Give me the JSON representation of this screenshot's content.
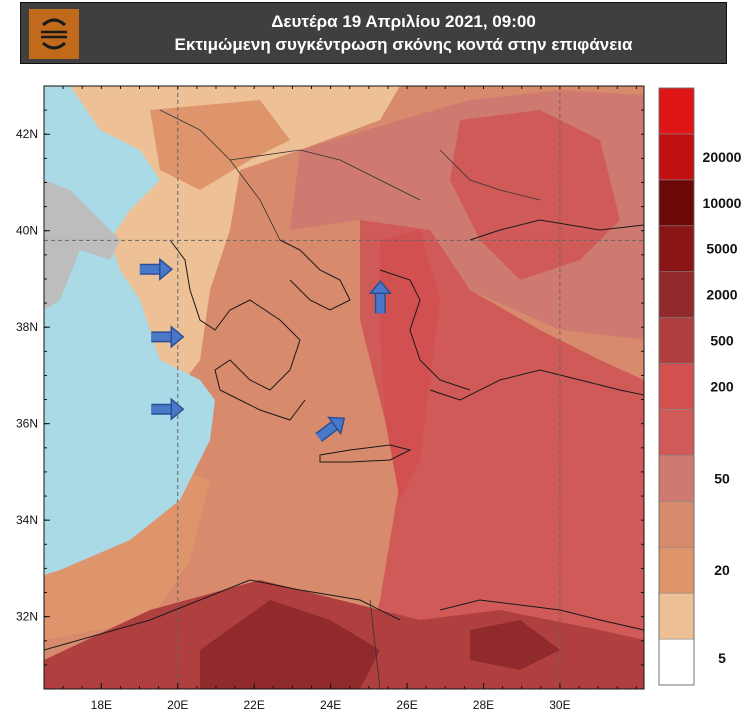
{
  "header": {
    "title_line1": "Δευτέρα 19 Απριλίου 2021, 09:00",
    "title_line2": "Εκτιμώμενη συγκέντρωση σκόνης κοντά στην επιφάνεια"
  },
  "logo": {
    "icon": "weather-logo-icon",
    "color": "#c26a1c"
  },
  "map": {
    "lon_range": [
      16.5,
      32.2
    ],
    "lat_range": [
      30.5,
      43.0
    ],
    "lon_ticks": [
      {
        "value": 18,
        "label": "18E"
      },
      {
        "value": 20,
        "label": "20E"
      },
      {
        "value": 22,
        "label": "22E"
      },
      {
        "value": 24,
        "label": "24E"
      },
      {
        "value": 26,
        "label": "26E"
      },
      {
        "value": 28,
        "label": "28E"
      },
      {
        "value": 30,
        "label": "30E"
      }
    ],
    "lat_ticks": [
      {
        "value": 32,
        "label": "32N"
      },
      {
        "value": 34,
        "label": "34N"
      },
      {
        "value": 36,
        "label": "36N"
      },
      {
        "value": 38,
        "label": "38N"
      },
      {
        "value": 40,
        "label": "40N"
      },
      {
        "value": 42,
        "label": "42N"
      }
    ],
    "gridlines": {
      "lon": [
        20,
        30
      ],
      "lat": [
        39.8
      ]
    },
    "arrows": [
      {
        "lon": 19.4,
        "lat": 39.2,
        "direction": "east"
      },
      {
        "lon": 19.7,
        "lat": 37.8,
        "direction": "east"
      },
      {
        "lon": 19.7,
        "lat": 36.3,
        "direction": "east"
      },
      {
        "lon": 24.0,
        "lat": 35.9,
        "direction": "northeast"
      },
      {
        "lon": 25.3,
        "lat": 38.6,
        "direction": "north"
      }
    ],
    "arrow_color": "#4a78c9"
  },
  "colorbar": {
    "levels": [
      {
        "label": "5",
        "color": "#ffffff"
      },
      {
        "label": "",
        "color": "#eec096"
      },
      {
        "label": "20",
        "color": "#de956c"
      },
      {
        "label": "",
        "color": "#d88a6c"
      },
      {
        "label": "50",
        "color": "#ce7a70"
      },
      {
        "label": "",
        "color": "#d05a58"
      },
      {
        "label": "200",
        "color": "#d35050"
      },
      {
        "label": "500",
        "color": "#b03f40"
      },
      {
        "label": "2000",
        "color": "#902a2c"
      },
      {
        "label": "5000",
        "color": "#8a1515"
      },
      {
        "label": "10000",
        "color": "#6b0808"
      },
      {
        "label": "20000",
        "color": "#c01010"
      },
      {
        "label": "",
        "color": "#e01515"
      }
    ]
  }
}
